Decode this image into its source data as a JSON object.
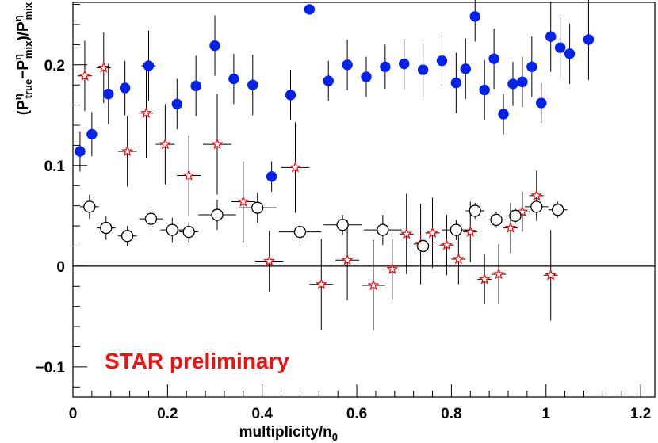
{
  "chart_data": {
    "type": "scatter",
    "title": "",
    "xlabel": "multiplicity/n",
    "xlabel_sub": "0",
    "ylabel_parts": [
      {
        "text": "(P",
        "style": "normal"
      },
      {
        "text": "η",
        "style": "sup"
      },
      {
        "text": "true",
        "style": "sub"
      },
      {
        "text": "−P",
        "style": "normal"
      },
      {
        "text": "η",
        "style": "sup"
      },
      {
        "text": "mix",
        "style": "sub"
      },
      {
        "text": ")/P",
        "style": "normal"
      },
      {
        "text": "η",
        "style": "sup"
      },
      {
        "text": "mix",
        "style": "sub"
      }
    ],
    "xlim": [
      0,
      1.23
    ],
    "ylim": [
      -0.13,
      0.262
    ],
    "x_ticks": [
      0,
      0.2,
      0.4,
      0.6,
      0.8,
      1,
      1.2
    ],
    "x_tick_labels": [
      "0",
      "0.2",
      "0.4",
      "0.6",
      "0.8",
      "1",
      "1.2"
    ],
    "y_ticks": [
      -0.1,
      0,
      0.1,
      0.2
    ],
    "y_tick_labels": [
      "−0.1",
      "0",
      "0.1",
      "0.2"
    ],
    "reference_line_y": 0,
    "grid": false,
    "annotation": {
      "text": "STAR preliminary",
      "color": "#ee1111"
    },
    "series": [
      {
        "marker": "filled-circle",
        "color": "#0022ee",
        "points": [
          {
            "x": 0.015,
            "y": 0.114,
            "ey": 0.02
          },
          {
            "x": 0.04,
            "y": 0.131,
            "ey": 0.022
          },
          {
            "x": 0.075,
            "y": 0.171,
            "ey": 0.03
          },
          {
            "x": 0.11,
            "y": 0.177,
            "ey": 0.027
          },
          {
            "x": 0.16,
            "y": 0.199,
            "ey": 0.035,
            "ex": 0.015
          },
          {
            "x": 0.22,
            "y": 0.161,
            "ey": 0.025
          },
          {
            "x": 0.26,
            "y": 0.179,
            "ey": 0.03
          },
          {
            "x": 0.3,
            "y": 0.219,
            "ey": 0.03
          },
          {
            "x": 0.34,
            "y": 0.186,
            "ey": 0.025
          },
          {
            "x": 0.38,
            "y": 0.18,
            "ey": 0.03
          },
          {
            "x": 0.42,
            "y": 0.089,
            "ey": 0.015
          },
          {
            "x": 0.46,
            "y": 0.17,
            "ey": 0.025
          },
          {
            "x": 0.5,
            "y": 0.255,
            "ey": 0.0
          },
          {
            "x": 0.54,
            "y": 0.184,
            "ey": 0.02
          },
          {
            "x": 0.58,
            "y": 0.2,
            "ey": 0.025
          },
          {
            "x": 0.62,
            "y": 0.188,
            "ey": 0.02
          },
          {
            "x": 0.66,
            "y": 0.198,
            "ey": 0.022
          },
          {
            "x": 0.7,
            "y": 0.201,
            "ey": 0.025
          },
          {
            "x": 0.74,
            "y": 0.195,
            "ey": 0.027
          },
          {
            "x": 0.78,
            "y": 0.204,
            "ey": 0.025
          },
          {
            "x": 0.81,
            "y": 0.182,
            "ey": 0.03
          },
          {
            "x": 0.83,
            "y": 0.196,
            "ey": 0.03
          },
          {
            "x": 0.85,
            "y": 0.248,
            "ey": 0.025
          },
          {
            "x": 0.87,
            "y": 0.175,
            "ey": 0.03
          },
          {
            "x": 0.89,
            "y": 0.206,
            "ey": 0.03
          },
          {
            "x": 0.91,
            "y": 0.151,
            "ey": 0.02
          },
          {
            "x": 0.93,
            "y": 0.181,
            "ey": 0.022
          },
          {
            "x": 0.95,
            "y": 0.183,
            "ey": 0.025
          },
          {
            "x": 0.97,
            "y": 0.198,
            "ey": 0.03
          },
          {
            "x": 0.99,
            "y": 0.162,
            "ey": 0.02
          },
          {
            "x": 1.01,
            "y": 0.228,
            "ey": 0.035
          },
          {
            "x": 1.03,
            "y": 0.217,
            "ey": 0.03
          },
          {
            "x": 1.05,
            "y": 0.211,
            "ey": 0.03
          },
          {
            "x": 1.09,
            "y": 0.225,
            "ey": 0.04
          }
        ]
      },
      {
        "marker": "open-circle",
        "color": "#000000",
        "points": [
          {
            "x": 0.035,
            "y": 0.059,
            "ey": 0.012,
            "ex": 0.02
          },
          {
            "x": 0.07,
            "y": 0.038,
            "ey": 0.012,
            "ex": 0.02
          },
          {
            "x": 0.115,
            "y": 0.03,
            "ey": 0.01,
            "ex": 0.02
          },
          {
            "x": 0.165,
            "y": 0.047,
            "ey": 0.012,
            "ex": 0.025
          },
          {
            "x": 0.21,
            "y": 0.036,
            "ey": 0.012,
            "ex": 0.025
          },
          {
            "x": 0.245,
            "y": 0.034,
            "ey": 0.01,
            "ex": 0.02
          },
          {
            "x": 0.305,
            "y": 0.051,
            "ey": 0.015,
            "ex": 0.04
          },
          {
            "x": 0.39,
            "y": 0.058,
            "ey": 0.015,
            "ex": 0.04
          },
          {
            "x": 0.48,
            "y": 0.034,
            "ey": 0.01,
            "ex": 0.045
          },
          {
            "x": 0.57,
            "y": 0.041,
            "ey": 0.01,
            "ex": 0.04
          },
          {
            "x": 0.655,
            "y": 0.036,
            "ey": 0.015,
            "ex": 0.04
          },
          {
            "x": 0.74,
            "y": 0.02,
            "ey": 0.012,
            "ex": 0.03
          },
          {
            "x": 0.81,
            "y": 0.036,
            "ey": 0.01,
            "ex": 0.03
          },
          {
            "x": 0.85,
            "y": 0.055,
            "ey": 0.008,
            "ex": 0.02
          },
          {
            "x": 0.895,
            "y": 0.046,
            "ey": 0.008,
            "ex": 0.02
          },
          {
            "x": 0.935,
            "y": 0.05,
            "ey": 0.008,
            "ex": 0.02
          },
          {
            "x": 0.98,
            "y": 0.059,
            "ey": 0.01,
            "ex": 0.025
          },
          {
            "x": 1.025,
            "y": 0.056,
            "ey": 0.008,
            "ex": 0.02
          }
        ]
      },
      {
        "marker": "open-star",
        "color": "#ee1111",
        "points": [
          {
            "x": 0.025,
            "y": 0.189,
            "ey": 0.035,
            "ex": 0.015
          },
          {
            "x": 0.065,
            "y": 0.197,
            "ey": 0.035,
            "ex": 0.015
          },
          {
            "x": 0.115,
            "y": 0.114,
            "ey": 0.035,
            "ex": 0.02
          },
          {
            "x": 0.155,
            "y": 0.152,
            "ey": 0.045,
            "ex": 0.015
          },
          {
            "x": 0.195,
            "y": 0.121,
            "ey": 0.04,
            "ex": 0.02
          },
          {
            "x": 0.245,
            "y": 0.09,
            "ey": 0.04,
            "ex": 0.025
          },
          {
            "x": 0.305,
            "y": 0.121,
            "ey": 0.05,
            "ex": 0.03
          },
          {
            "x": 0.36,
            "y": 0.064,
            "ey": 0.04,
            "ex": 0.025
          },
          {
            "x": 0.415,
            "y": 0.005,
            "ey": 0.03,
            "ex": 0.03
          },
          {
            "x": 0.47,
            "y": 0.098,
            "ey": 0.045,
            "ex": 0.03
          },
          {
            "x": 0.525,
            "y": -0.018,
            "ey": 0.045,
            "ex": 0.025
          },
          {
            "x": 0.58,
            "y": 0.006,
            "ey": 0.04,
            "ex": 0.025
          },
          {
            "x": 0.635,
            "y": -0.019,
            "ey": 0.045,
            "ex": 0.025
          },
          {
            "x": 0.675,
            "y": -0.003,
            "ey": 0.03,
            "ex": 0.015
          },
          {
            "x": 0.705,
            "y": 0.032,
            "ey": 0.04,
            "ex": 0.015
          },
          {
            "x": 0.735,
            "y": 0.022,
            "ey": 0.04,
            "ex": 0.015
          },
          {
            "x": 0.76,
            "y": 0.033,
            "ey": 0.035,
            "ex": 0.015
          },
          {
            "x": 0.79,
            "y": 0.021,
            "ey": 0.03,
            "ex": 0.015
          },
          {
            "x": 0.815,
            "y": 0.007,
            "ey": 0.025,
            "ex": 0.015
          },
          {
            "x": 0.84,
            "y": 0.034,
            "ey": 0.03,
            "ex": 0.015
          },
          {
            "x": 0.87,
            "y": -0.013,
            "ey": 0.025,
            "ex": 0.015
          },
          {
            "x": 0.9,
            "y": -0.008,
            "ey": 0.03,
            "ex": 0.015
          },
          {
            "x": 0.95,
            "y": 0.054,
            "ey": 0.02,
            "ex": 0.015
          },
          {
            "x": 0.925,
            "y": 0.038,
            "ey": 0.025,
            "ex": 0.015
          },
          {
            "x": 0.98,
            "y": 0.07,
            "ey": 0.025,
            "ex": 0.015
          },
          {
            "x": 1.01,
            "y": -0.009,
            "ey": 0.045,
            "ex": 0.015
          }
        ]
      }
    ]
  }
}
